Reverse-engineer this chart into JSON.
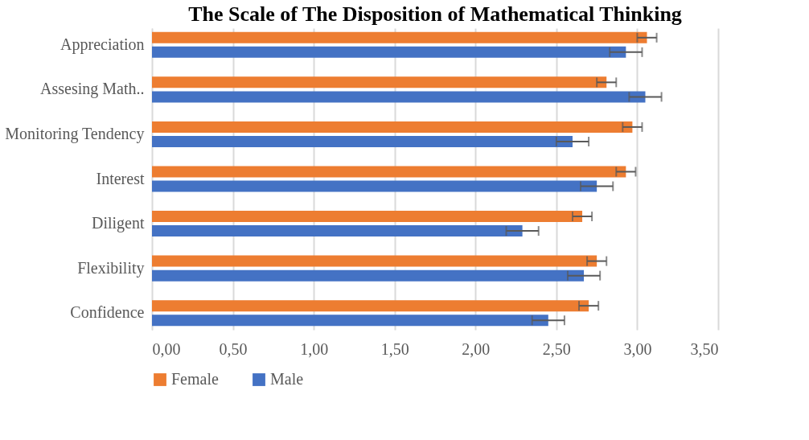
{
  "chart_data": {
    "type": "bar",
    "orientation": "horizontal",
    "title": "The Scale of The Disposition of Mathematical Thinking",
    "categories": [
      "Appreciation",
      "Assesing Math..",
      "Monitoring Tendency",
      "Interest",
      "Diligent",
      "Flexibility",
      "Confidence"
    ],
    "series": [
      {
        "name": "Female",
        "color": "#ed7d31",
        "values": [
          3.06,
          2.81,
          2.97,
          2.93,
          2.66,
          2.75,
          2.7
        ],
        "errors": [
          0.06,
          0.06,
          0.06,
          0.06,
          0.06,
          0.06,
          0.06
        ]
      },
      {
        "name": "Male",
        "color": "#4472c4",
        "values": [
          2.93,
          3.05,
          2.6,
          2.75,
          2.29,
          2.67,
          2.45
        ],
        "errors": [
          0.1,
          0.1,
          0.1,
          0.1,
          0.1,
          0.1,
          0.1
        ]
      }
    ],
    "xlim": [
      0,
      3.5
    ],
    "xticks": [
      {
        "value": 0,
        "label": "0,00"
      },
      {
        "value": 0.5,
        "label": "0,50"
      },
      {
        "value": 1,
        "label": "1,00"
      },
      {
        "value": 1.5,
        "label": "1,50"
      },
      {
        "value": 2,
        "label": "2,00"
      },
      {
        "value": 2.5,
        "label": "2,50"
      },
      {
        "value": 3,
        "label": "3,00"
      },
      {
        "value": 3.5,
        "label": "3,50"
      }
    ],
    "grid": "x",
    "legend": "bottom"
  }
}
